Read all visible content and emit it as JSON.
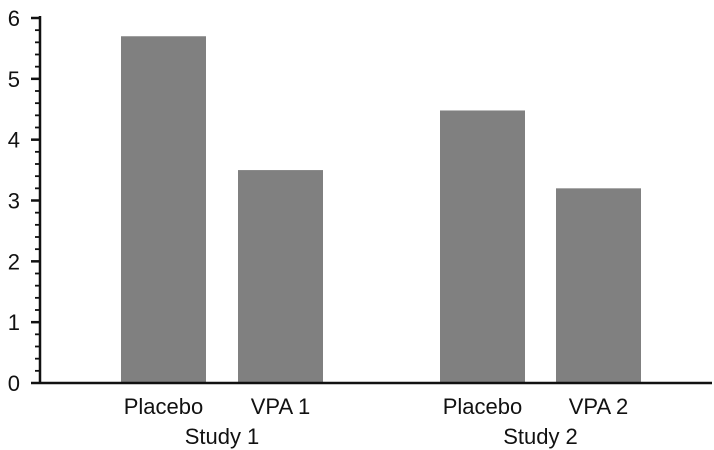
{
  "chart_data": {
    "type": "bar",
    "title": "",
    "xlabel": "",
    "ylabel": "",
    "ylim": [
      0,
      6
    ],
    "yticks": [
      "0",
      "1",
      "2",
      "3",
      "4",
      "5",
      "6"
    ],
    "grid": false,
    "legend": "none",
    "bar_color": "#808080",
    "axis_color": "#111111",
    "groups": [
      {
        "label": "Study 1",
        "bars": [
          {
            "label": "Placebo",
            "value": 5.7
          },
          {
            "label": "VPA 1",
            "value": 3.5
          }
        ]
      },
      {
        "label": "Study 2",
        "bars": [
          {
            "label": "Placebo",
            "value": 4.48
          },
          {
            "label": "VPA 2",
            "value": 3.2
          }
        ]
      }
    ]
  }
}
